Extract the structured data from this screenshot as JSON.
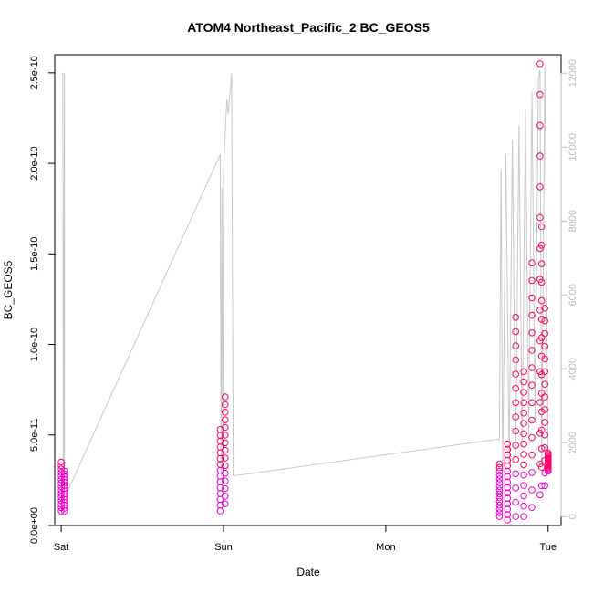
{
  "chart_data": {
    "type": "scatter",
    "title": "ATOM4 Northeast_Pacific_2 BC_GEOS5",
    "xlabel": "Date",
    "ylabel": "BC_GEOS5",
    "x_ticks": [
      "Sat",
      "Sun",
      "Mon",
      "Tue"
    ],
    "y_ticks": [
      "0.0e+00",
      "5.0e-11",
      "1.0e-10",
      "1.5e-10",
      "2.0e-10",
      "2.5e-10"
    ],
    "y_tick_values": [
      0,
      5e-11,
      1e-10,
      1.5e-10,
      2e-10,
      2.5e-10
    ],
    "ylim": [
      0,
      2.6e-10
    ],
    "xlim": [
      -0.04,
      3.08
    ],
    "y2_ticks": [
      "0",
      "2000",
      "4000",
      "6000",
      "8000",
      "10000",
      "12000"
    ],
    "y2_tick_values": [
      0,
      2000,
      4000,
      6000,
      8000,
      10000,
      12000
    ],
    "y2lim": [
      -240,
      12500
    ],
    "grid": false,
    "colors": {
      "points_low": "#ee00cc",
      "points_high": "#ff0066",
      "altitude_line": "#c8c8c8"
    },
    "series": [
      {
        "kind": "points",
        "x": [
          0.0,
          0.02,
          0.98,
          1.01,
          2.7,
          2.75,
          2.8,
          2.85,
          2.9,
          2.95,
          2.96,
          2.98,
          3.0
        ],
        "y_range": [
          [
            8e-12,
            3.5e-11
          ],
          [
            8e-12,
            3e-11
          ],
          [
            8e-12,
            5.3e-11
          ],
          [
            1.2e-11,
            7.1e-11
          ],
          [
            5e-12,
            3.4e-11
          ],
          [
            3e-12,
            4.5e-11
          ],
          [
            5e-12,
            1.15e-10
          ],
          [
            5e-12,
            8.5e-11
          ],
          [
            1e-11,
            1.45e-10
          ],
          [
            1.7e-11,
            2.55e-10
          ],
          [
            2.2e-11,
            1.65e-10
          ],
          [
            2.2e-11,
            1.2e-10
          ],
          [
            3e-11,
            4e-11
          ]
        ]
      },
      {
        "kind": "line",
        "axis": "right",
        "x": [
          0.0,
          0.01,
          0.012,
          0.013,
          0.02,
          0.02,
          0.03,
          0.98,
          0.985,
          0.99,
          0.995,
          1.0,
          1.02,
          1.03,
          1.05,
          1.06,
          2.7,
          2.71,
          2.72,
          2.74,
          2.76,
          2.78,
          2.8,
          2.82,
          2.84,
          2.86,
          2.88,
          2.9,
          2.92,
          2.94,
          2.95,
          2.96,
          2.98,
          3.0
        ],
        "y": [
          12000,
          12000,
          3200,
          900,
          12000,
          600,
          600,
          9800,
          1100,
          8900,
          1100,
          9300,
          11300,
          10900,
          12000,
          1100,
          2100,
          9400,
          1200,
          9800,
          1400,
          10200,
          1600,
          10600,
          1900,
          11000,
          2200,
          11500,
          2600,
          11800,
          12100,
          1500,
          12200,
          1300
        ]
      }
    ]
  }
}
